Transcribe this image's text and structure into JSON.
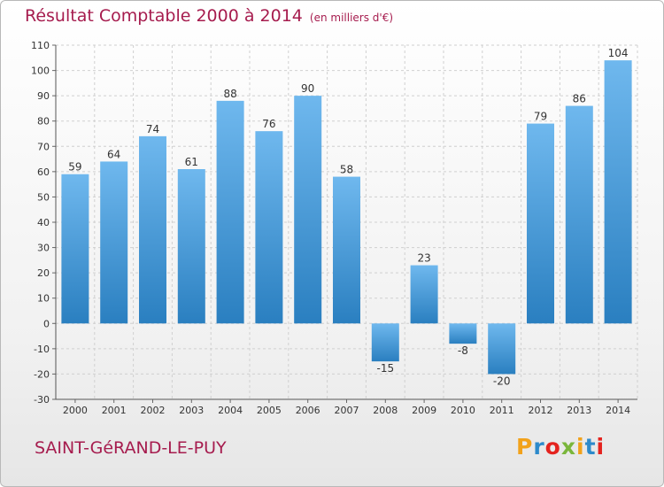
{
  "header": {
    "title": "Résultat Comptable 2000 à 2014",
    "unit": "(en milliers d'€)"
  },
  "footer": {
    "commune": "SAINT-GéRAND-LE-PUY",
    "logo_text": "Proxiti"
  },
  "colors": {
    "title": "#a61c4e",
    "bar_light": "#6fb8ee",
    "bar_dark": "#2a7fc0",
    "grid": "#d0d0d0",
    "logo": [
      "#f2a21b",
      "#2d8acb",
      "#e4231e",
      "#7ab63b",
      "#f2a21b",
      "#2d8acb",
      "#e4231e"
    ]
  },
  "chart_data": {
    "type": "bar",
    "title": "Résultat Comptable 2000 à 2014",
    "subtitle": "(en milliers d'€)",
    "categories": [
      "2000",
      "2001",
      "2002",
      "2003",
      "2004",
      "2005",
      "2006",
      "2007",
      "2008",
      "2009",
      "2010",
      "2011",
      "2012",
      "2013",
      "2014"
    ],
    "values": [
      59,
      64,
      74,
      61,
      88,
      76,
      90,
      58,
      -15,
      23,
      -8,
      -20,
      79,
      86,
      104
    ],
    "ylim": [
      -30,
      110
    ],
    "yticks": [
      -30,
      -20,
      -10,
      0,
      10,
      20,
      30,
      40,
      50,
      60,
      70,
      80,
      90,
      100,
      110
    ],
    "grid": true,
    "legend": "none"
  }
}
